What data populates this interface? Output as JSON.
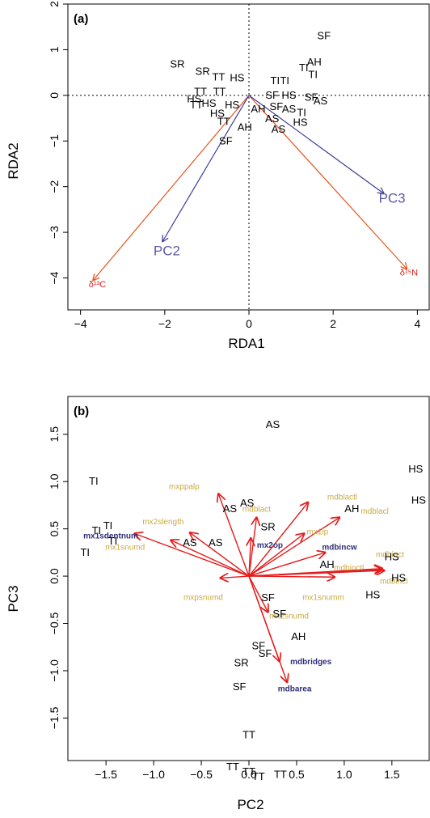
{
  "colors": {
    "isotope_arrow": "#e8541f",
    "isotope_label": "#d8231e",
    "pc_arrow": "#3c3c96",
    "pc_label": "#5a5aa8",
    "trait_arrow": "#e51a1a",
    "trait_label_plain": "#c9ab45",
    "trait_label_bold": "#2e2e7a",
    "axis": "#000000"
  },
  "chart_data": [
    {
      "type": "scatter",
      "panel_label": "(a)",
      "xlabel": "RDA1",
      "ylabel": "RDA2",
      "xlim": [
        -4.3,
        4.3
      ],
      "ylim": [
        -4.7,
        2.0
      ],
      "xticks": [
        -4,
        -2,
        0,
        2,
        4
      ],
      "xtick_labels": [
        "−4",
        "−2",
        "0",
        "2",
        "4"
      ],
      "yticks": [
        -4,
        -3,
        -2,
        -1,
        0,
        1,
        2
      ],
      "ytick_labels": [
        "−4",
        "−3",
        "−2",
        "−1",
        "0",
        "1",
        "2"
      ],
      "zero_lines": true,
      "points": [
        {
          "label": "SF",
          "x": 1.78,
          "y": 1.3
        },
        {
          "label": "SR",
          "x": -1.7,
          "y": 0.68
        },
        {
          "label": "SR",
          "x": -1.1,
          "y": 0.52
        },
        {
          "label": "TT",
          "x": -0.72,
          "y": 0.4
        },
        {
          "label": "HS",
          "x": -0.28,
          "y": 0.38
        },
        {
          "label": "TT",
          "x": -1.15,
          "y": 0.08
        },
        {
          "label": "TT",
          "x": -0.7,
          "y": 0.08
        },
        {
          "label": "TT",
          "x": -1.25,
          "y": -0.22
        },
        {
          "label": "HS",
          "x": -1.3,
          "y": -0.08
        },
        {
          "label": "HS",
          "x": -0.95,
          "y": -0.18
        },
        {
          "label": "HS",
          "x": -0.4,
          "y": -0.22
        },
        {
          "label": "HS",
          "x": -0.75,
          "y": -0.4
        },
        {
          "label": "TT",
          "x": -0.6,
          "y": -0.58
        },
        {
          "label": "AH",
          "x": -0.1,
          "y": -0.7
        },
        {
          "label": "AH",
          "x": 0.22,
          "y": -0.3
        },
        {
          "label": "SF",
          "x": -0.55,
          "y": -1.0
        },
        {
          "label": "TI",
          "x": 1.3,
          "y": 0.6
        },
        {
          "label": "AH",
          "x": 1.55,
          "y": 0.72
        },
        {
          "label": "TI",
          "x": 1.52,
          "y": 0.45
        },
        {
          "label": "TI",
          "x": 0.62,
          "y": 0.32
        },
        {
          "label": "TI",
          "x": 0.85,
          "y": 0.32
        },
        {
          "label": "SF",
          "x": 0.55,
          "y": 0.0
        },
        {
          "label": "HS",
          "x": 0.95,
          "y": 0.0
        },
        {
          "label": "SF",
          "x": 1.48,
          "y": -0.05
        },
        {
          "label": "AS",
          "x": 1.7,
          "y": -0.13
        },
        {
          "label": "SF",
          "x": 0.65,
          "y": -0.25
        },
        {
          "label": "AS",
          "x": 0.95,
          "y": -0.3
        },
        {
          "label": "TI",
          "x": 1.25,
          "y": -0.38
        },
        {
          "label": "AS",
          "x": 0.55,
          "y": -0.52
        },
        {
          "label": "HS",
          "x": 1.22,
          "y": -0.6
        },
        {
          "label": "AS",
          "x": 0.7,
          "y": -0.75
        }
      ],
      "vectors": [
        {
          "label": "δ¹³C",
          "x": -3.7,
          "y": -4.05,
          "kind": "isotope"
        },
        {
          "label": "δ¹⁵N",
          "x": 3.75,
          "y": -3.8,
          "kind": "isotope"
        },
        {
          "label": "PC2",
          "x": -2.05,
          "y": -3.2,
          "kind": "pc"
        },
        {
          "label": "PC3",
          "x": 3.2,
          "y": -2.15,
          "kind": "pc"
        }
      ],
      "vector_label_positions": [
        {
          "x": -3.6,
          "y": -4.2,
          "anchor": "middle"
        },
        {
          "x": 3.8,
          "y": -3.95,
          "anchor": "middle"
        },
        {
          "x": -1.95,
          "y": -3.5,
          "anchor": "middle"
        },
        {
          "x": 3.4,
          "y": -2.35,
          "anchor": "middle"
        }
      ]
    },
    {
      "type": "scatter",
      "panel_label": "(b)",
      "xlabel": "PC2",
      "ylabel": "PC3",
      "xlim": [
        -1.9,
        1.9
      ],
      "ylim": [
        -1.95,
        1.9
      ],
      "xticks": [
        -1.5,
        -1.0,
        -0.5,
        0.0,
        0.5,
        1.0,
        1.5
      ],
      "xtick_labels": [
        "−1.5",
        "−1.0",
        "−0.5",
        "0.0",
        "0.5",
        "1.0",
        "1.5"
      ],
      "yticks": [
        -1.5,
        -1.0,
        -0.5,
        0.0,
        0.5,
        1.0,
        1.5
      ],
      "ytick_labels": [
        "−1.5",
        "−1.0",
        "−0.5",
        "0.0",
        "0.5",
        "1.0",
        "1.5"
      ],
      "zero_lines": false,
      "points": [
        {
          "label": "AS",
          "x": 0.25,
          "y": 1.6
        },
        {
          "label": "TI",
          "x": -1.63,
          "y": 1.0
        },
        {
          "label": "AS",
          "x": -0.02,
          "y": 0.77
        },
        {
          "label": "AS",
          "x": -0.2,
          "y": 0.71
        },
        {
          "label": "TI",
          "x": -1.48,
          "y": 0.53
        },
        {
          "label": "TI",
          "x": -1.6,
          "y": 0.48
        },
        {
          "label": "TI",
          "x": -1.43,
          "y": 0.37
        },
        {
          "label": "TI",
          "x": -1.72,
          "y": 0.25
        },
        {
          "label": "AS",
          "x": -0.62,
          "y": 0.35
        },
        {
          "label": "AS",
          "x": -0.35,
          "y": 0.35
        },
        {
          "label": "SR",
          "x": 0.2,
          "y": 0.52
        },
        {
          "label": "AH",
          "x": 1.08,
          "y": 0.71
        },
        {
          "label": "AH",
          "x": 0.82,
          "y": 0.12
        },
        {
          "label": "HS",
          "x": 1.75,
          "y": 1.13
        },
        {
          "label": "HS",
          "x": 1.78,
          "y": 0.8
        },
        {
          "label": "HS",
          "x": 1.5,
          "y": 0.2
        },
        {
          "label": "HS",
          "x": 1.57,
          "y": -0.02
        },
        {
          "label": "HS",
          "x": 1.3,
          "y": -0.2
        },
        {
          "label": "SF",
          "x": 0.2,
          "y": -0.23
        },
        {
          "label": "SF",
          "x": 0.32,
          "y": -0.4
        },
        {
          "label": "AH",
          "x": 0.52,
          "y": -0.64
        },
        {
          "label": "SF",
          "x": 0.1,
          "y": -0.74
        },
        {
          "label": "SF",
          "x": 0.17,
          "y": -0.82
        },
        {
          "label": "SR",
          "x": -0.08,
          "y": -0.92
        },
        {
          "label": "SF",
          "x": -0.1,
          "y": -1.17
        },
        {
          "label": "TT",
          "x": 0.0,
          "y": -1.68
        },
        {
          "label": "TT",
          "x": -0.17,
          "y": -2.02
        },
        {
          "label": "TT",
          "x": 0.0,
          "y": -2.07
        },
        {
          "label": "TT",
          "x": 0.1,
          "y": -2.12
        },
        {
          "label": "TT",
          "x": 0.33,
          "y": -2.1
        }
      ],
      "vectors": [
        {
          "label": "mxppalp",
          "x": -0.32,
          "y": 0.87,
          "bold": false
        },
        {
          "label": "mdblact",
          "x": 0.08,
          "y": 0.62,
          "bold": false
        },
        {
          "label": "mdblactl",
          "x": 0.62,
          "y": 0.78,
          "bold": false
        },
        {
          "label": "mdblacl",
          "x": 0.95,
          "y": 0.62,
          "bold": false
        },
        {
          "label": "mx1ip",
          "x": 0.58,
          "y": 0.45,
          "bold": false
        },
        {
          "label": "mx1sdentnum",
          "x": -1.2,
          "y": 0.45,
          "bold": true
        },
        {
          "label": "mx2slength",
          "x": -0.62,
          "y": 0.46,
          "bold": false
        },
        {
          "label": "mx1snumd",
          "x": -0.82,
          "y": 0.38,
          "bold": false
        },
        {
          "label": "mx2op",
          "x": 0.02,
          "y": 0.4,
          "bold": true
        },
        {
          "label": "mdbincw",
          "x": 0.8,
          "y": 0.25,
          "bold": true
        },
        {
          "label": "mdbinctl",
          "x": 1.4,
          "y": 0.08,
          "bold": false
        },
        {
          "label": "mdbinct",
          "x": 1.4,
          "y": 0.07,
          "bold": false
        },
        {
          "label": "mdbincl",
          "x": 1.42,
          "y": 0.06,
          "bold": false
        },
        {
          "label": "mx1snumm",
          "x": 0.9,
          "y": -0.01,
          "bold": false
        },
        {
          "label": "mxpsnumd",
          "x": -0.3,
          "y": -0.02,
          "bold": false
        },
        {
          "label": "mx2snumd",
          "x": 0.2,
          "y": -0.38,
          "bold": false
        },
        {
          "label": "mdbridges",
          "x": 0.32,
          "y": -0.9,
          "bold": true
        },
        {
          "label": "mdbarea",
          "x": 0.4,
          "y": -1.12,
          "bold": true
        }
      ],
      "vector_label_positions": [
        {
          "x": -0.68,
          "y": 0.92,
          "anchor": "middle"
        },
        {
          "x": 0.08,
          "y": 0.68,
          "anchor": "middle"
        },
        {
          "x": 0.98,
          "y": 0.81,
          "anchor": "middle"
        },
        {
          "x": 1.32,
          "y": 0.66,
          "anchor": "middle"
        },
        {
          "x": 0.72,
          "y": 0.44,
          "anchor": "middle"
        },
        {
          "x": -1.45,
          "y": 0.4,
          "anchor": "middle"
        },
        {
          "x": -0.9,
          "y": 0.55,
          "anchor": "middle"
        },
        {
          "x": -1.3,
          "y": 0.28,
          "anchor": "middle"
        },
        {
          "x": 0.22,
          "y": 0.3,
          "anchor": "middle"
        },
        {
          "x": 0.95,
          "y": 0.28,
          "anchor": "middle"
        },
        {
          "x": 1.05,
          "y": 0.06,
          "anchor": "middle"
        },
        {
          "x": 1.48,
          "y": 0.2,
          "anchor": "middle"
        },
        {
          "x": 1.52,
          "y": -0.08,
          "anchor": "middle"
        },
        {
          "x": 0.78,
          "y": -0.25,
          "anchor": "middle"
        },
        {
          "x": -0.48,
          "y": -0.25,
          "anchor": "middle"
        },
        {
          "x": 0.42,
          "y": -0.45,
          "anchor": "middle"
        },
        {
          "x": 0.65,
          "y": -0.93,
          "anchor": "middle"
        },
        {
          "x": 0.48,
          "y": -1.22,
          "anchor": "middle"
        }
      ]
    }
  ]
}
